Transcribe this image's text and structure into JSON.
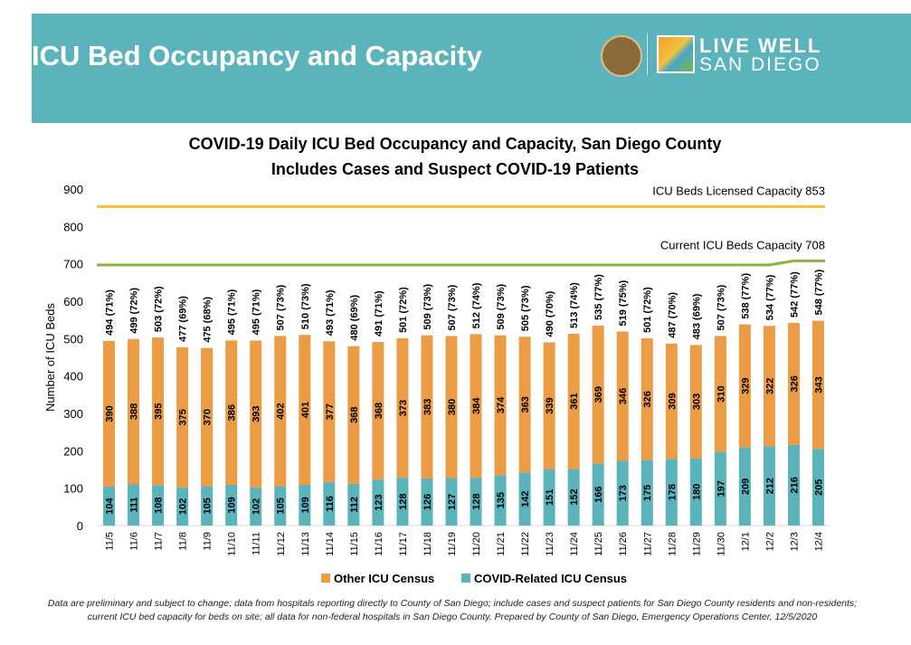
{
  "header": {
    "title": "ICU Bed Occupancy and Capacity",
    "logo_line1": "LIVE WELL",
    "logo_line2": "SAN DIEGO",
    "seal_text": "County of San Diego seal"
  },
  "chart_data": {
    "type": "bar",
    "title": "COVID-19 Daily ICU Bed Occupancy and Capacity, San Diego County",
    "subtitle": "Includes Cases and Suspect COVID-19 Patients",
    "ylabel": "Number of ICU Beds",
    "xlabel": "",
    "ylim": [
      0,
      900
    ],
    "yticks": [
      0,
      100,
      200,
      300,
      400,
      500,
      600,
      700,
      800,
      900
    ],
    "grid": false,
    "stacked": true,
    "legend_position": "bottom",
    "categories": [
      "11/5",
      "11/6",
      "11/7",
      "11/8",
      "11/9",
      "11/10",
      "11/11",
      "11/12",
      "11/13",
      "11/14",
      "11/15",
      "11/16",
      "11/17",
      "11/18",
      "11/19",
      "11/20",
      "11/21",
      "11/22",
      "11/23",
      "11/24",
      "11/25",
      "11/26",
      "11/27",
      "11/28",
      "11/29",
      "11/30",
      "12/1",
      "12/2",
      "12/3",
      "12/4"
    ],
    "series": [
      {
        "name": "COVID-Related ICU Census",
        "color": "#5bb3bc",
        "values": [
          104,
          111,
          108,
          102,
          105,
          109,
          102,
          105,
          109,
          116,
          112,
          123,
          128,
          126,
          127,
          128,
          135,
          142,
          151,
          152,
          166,
          173,
          175,
          178,
          180,
          197,
          209,
          212,
          216,
          205
        ]
      },
      {
        "name": "Other ICU Census",
        "color": "#eb9c45",
        "values": [
          390,
          388,
          395,
          375,
          370,
          386,
          393,
          402,
          401,
          377,
          368,
          368,
          373,
          383,
          380,
          384,
          374,
          363,
          339,
          361,
          369,
          346,
          326,
          309,
          303,
          310,
          329,
          322,
          326,
          343
        ]
      }
    ],
    "total_labels": [
      "494 (71%)",
      "499 (72%)",
      "503 (72%)",
      "477 (69%)",
      "475 (68%)",
      "495 (71%)",
      "495 (71%)",
      "507 (73%)",
      "510 (73%)",
      "493 (71%)",
      "480 (69%)",
      "491 (71%)",
      "501 (72%)",
      "509 (73%)",
      "507 (73%)",
      "512 (74%)",
      "509 (73%)",
      "505 (73%)",
      "490 (70%)",
      "513 (74%)",
      "535 (77%)",
      "519 (75%)",
      "501 (72%)",
      "487 (70%)",
      "483 (69%)",
      "507 (73%)",
      "538 (77%)",
      "534 (77%)",
      "542 (77%)",
      "548 (77%)"
    ],
    "lines": [
      {
        "name": "ICU Beds Licensed Capacity 853",
        "color": "#f2c12e",
        "values": [
          853,
          853,
          853,
          853,
          853,
          853,
          853,
          853,
          853,
          853,
          853,
          853,
          853,
          853,
          853,
          853,
          853,
          853,
          853,
          853,
          853,
          853,
          853,
          853,
          853,
          853,
          853,
          853,
          853,
          853
        ]
      },
      {
        "name": "Current ICU Beds Capacity 708",
        "color": "#8db041",
        "values": [
          697,
          697,
          697,
          697,
          697,
          697,
          697,
          697,
          697,
          697,
          697,
          697,
          697,
          697,
          697,
          697,
          697,
          697,
          697,
          697,
          697,
          697,
          697,
          697,
          697,
          697,
          697,
          697,
          708,
          708
        ]
      }
    ],
    "legend": [
      "Other ICU Census",
      "COVID-Related ICU Census"
    ]
  },
  "footnote": "Data are preliminary and subject to change; data from hospitals reporting directly to County of San Diego; include cases and suspect patients for San Diego County residents and non-residents; current ICU bed capacity for beds on site; all data for non-federal hospitals in San Diego County. Prepared by County of San Diego, Emergency Operations Center, 12/5/2020"
}
